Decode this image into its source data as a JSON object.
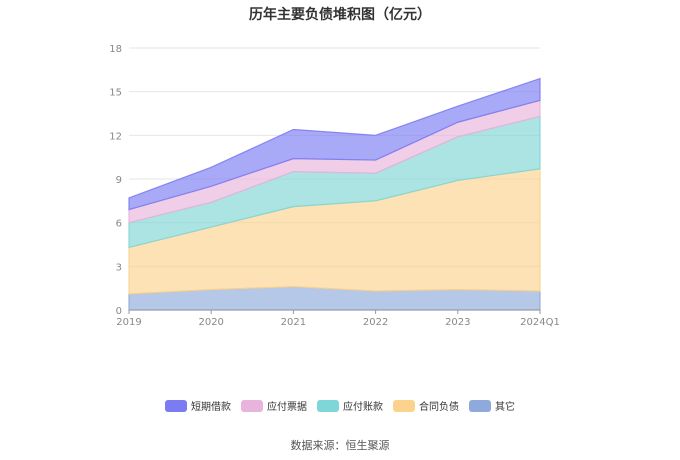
{
  "chart_data": {
    "type": "area",
    "stacked": true,
    "title": "历年主要负债堆积图（亿元）",
    "categories": [
      "2019",
      "2020",
      "2021",
      "2022",
      "2023",
      "2024Q1"
    ],
    "ylim": [
      0,
      18
    ],
    "yticks": [
      0,
      3,
      6,
      9,
      12,
      15,
      18
    ],
    "grid": true,
    "legend_position": "bottom",
    "series": [
      {
        "name": "其它",
        "color": "#8eaadb",
        "values": [
          1.1,
          1.4,
          1.6,
          1.3,
          1.4,
          1.3
        ]
      },
      {
        "name": "合同负债",
        "color": "#fbd38d",
        "values": [
          3.2,
          4.3,
          5.5,
          6.2,
          7.5,
          8.4
        ]
      },
      {
        "name": "应付账款",
        "color": "#7fd6d6",
        "values": [
          1.7,
          1.7,
          2.4,
          1.9,
          3.0,
          3.6
        ]
      },
      {
        "name": "应付票据",
        "color": "#e8b3dc",
        "values": [
          0.9,
          1.1,
          0.9,
          0.9,
          1.0,
          1.1
        ]
      },
      {
        "name": "短期借款",
        "color": "#7b7cf2",
        "values": [
          0.8,
          1.3,
          2.0,
          1.7,
          1.1,
          1.5
        ]
      }
    ],
    "legend_order": [
      "短期借款",
      "应付票据",
      "应付账款",
      "合同负债",
      "其它"
    ],
    "source": "数据来源：恒生聚源"
  }
}
